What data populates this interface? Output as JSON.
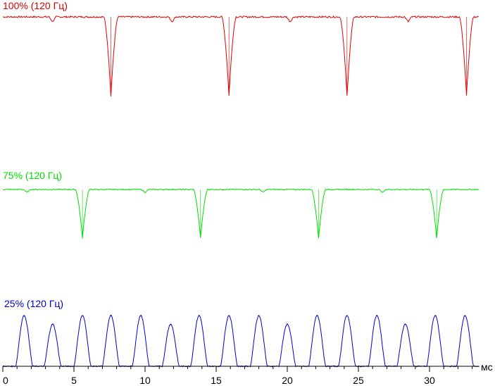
{
  "chart_data": {
    "type": "line",
    "xlabel": "мс",
    "xlim": [
      0,
      33.5
    ],
    "x_ticks": [
      0,
      5,
      10,
      15,
      20,
      25,
      30
    ],
    "refresh_rate_hz": 120,
    "series": [
      {
        "name": "100% (120 Гц)",
        "color": "#e00000",
        "shape": "dips",
        "baseline_level": 1.0,
        "dip_min_level": 0.0,
        "dip_centers_ms": [
          7.6,
          15.9,
          24.2,
          32.6
        ],
        "dip_width_ms": 0.5,
        "glitch_centers_ms": [
          3.5,
          11.9,
          20.2,
          28.5
        ]
      },
      {
        "name": "75% (120 Гц)",
        "color": "#00e000",
        "shape": "dips",
        "baseline_level": 1.0,
        "dip_min_level": 0.0,
        "dip_centers_ms": [
          5.6,
          13.9,
          22.2,
          30.5
        ],
        "dip_width_ms": 0.5,
        "glitch_centers_ms": [
          1.7,
          10.0,
          18.3,
          26.7
        ]
      },
      {
        "name": "25% (120 Гц)",
        "color": "#0000d0",
        "shape": "pulses",
        "baseline_level": 0.0,
        "pulse_centers_ms": [
          1.5,
          3.5,
          5.6,
          7.6,
          9.7,
          11.8,
          13.8,
          15.9,
          18.0,
          20.0,
          22.1,
          24.2,
          26.3,
          28.3,
          30.4,
          32.5
        ],
        "pulse_levels": [
          1.0,
          0.83,
          1.0,
          1.0,
          1.0,
          0.83,
          1.0,
          1.0,
          1.0,
          0.83,
          1.0,
          1.0,
          1.0,
          0.83,
          1.0,
          1.0
        ],
        "pulse_width_ms": 0.6
      }
    ]
  }
}
